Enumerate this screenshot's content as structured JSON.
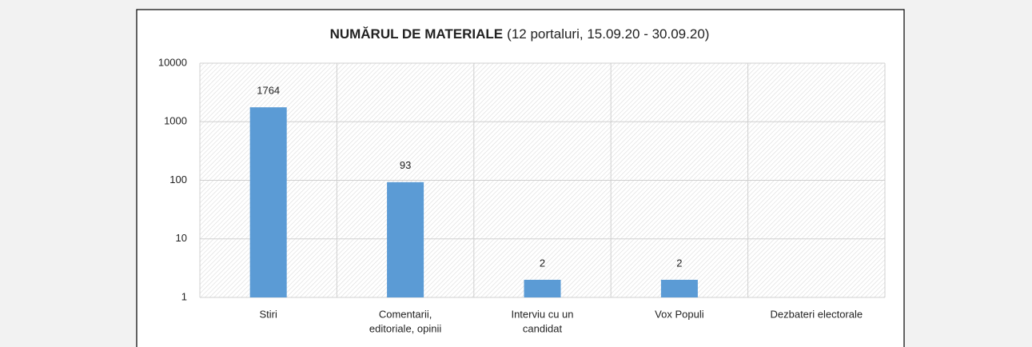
{
  "chart_data": {
    "type": "bar",
    "title": "NUMĂRUL DE MATERIALE",
    "subtitle": "(12 portaluri, 15.09.20 - 30.09.20)",
    "categories": [
      [
        "Stiri"
      ],
      [
        "Comentarii,",
        "editoriale, opinii"
      ],
      [
        "Interviu cu un",
        "candidat"
      ],
      [
        "Vox Populi"
      ],
      [
        "Dezbateri electorale"
      ]
    ],
    "values": [
      1764,
      93,
      2,
      2,
      null
    ],
    "color": "#5b9bd5",
    "log": true,
    "ylim": [
      1,
      10000
    ],
    "yticks": [
      1,
      10,
      100,
      1000,
      10000
    ],
    "grid": true
  }
}
